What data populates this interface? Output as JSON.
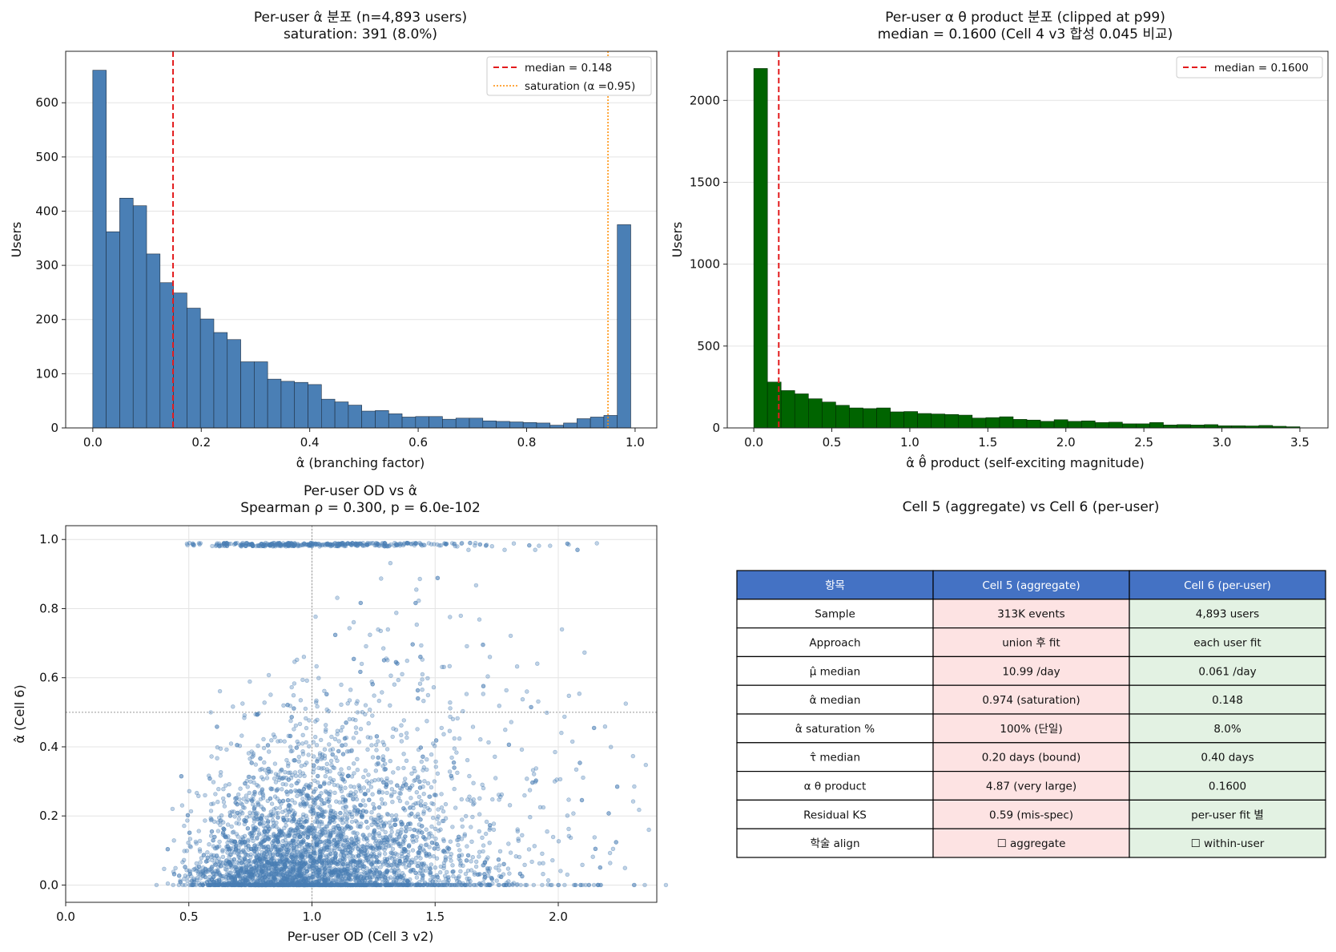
{
  "colors": {
    "hist1": "#4a7fb5",
    "hist2": "#006400",
    "median": "#e31a1c",
    "saturation": "#ff8c00",
    "scatter": "#4a7fb5",
    "table_header": "#4472c4",
    "table_agg": "#fde3e3",
    "table_per": "#e3f2e3"
  },
  "chart_data": [
    {
      "type": "bar",
      "title": "Per-user α̂ 분포 (n=4,893 users)",
      "subtitle": "saturation: 391 (8.0%)",
      "xlabel": "α̂ (branching factor)",
      "ylabel": "Users",
      "xlim": [
        -0.05,
        1.04
      ],
      "ylim": [
        0,
        695
      ],
      "xticks": [
        "0.0",
        "0.2",
        "0.4",
        "0.6",
        "0.8",
        "1.0"
      ],
      "xtick_values": [
        0,
        0.2,
        0.4,
        0.6,
        0.8,
        1.0
      ],
      "yticks": [
        "0",
        "100",
        "200",
        "300",
        "400",
        "500",
        "600"
      ],
      "ytick_values": [
        0,
        100,
        200,
        300,
        400,
        500,
        600
      ],
      "bin_start": 0.0,
      "bin_width": 0.0248,
      "values": [
        660,
        362,
        424,
        410,
        321,
        268,
        249,
        221,
        201,
        176,
        163,
        122,
        122,
        90,
        86,
        84,
        80,
        53,
        48,
        42,
        31,
        32,
        26,
        20,
        21,
        21,
        16,
        18,
        18,
        13,
        12,
        11,
        10,
        9,
        5,
        9,
        17,
        20,
        23,
        375
      ],
      "median": 0.148,
      "saturation": 0.95,
      "grid": "y",
      "legend": {
        "position": "top-right",
        "entries": [
          "median = 0.148",
          "saturation (α =0.95)"
        ]
      }
    },
    {
      "type": "bar",
      "title": "Per-user α θ product 분포 (clipped at p99)",
      "subtitle": "median = 0.1600 (Cell 4 v3 합성 0.045 비교)",
      "xlabel": "α̂ θ̂ product (self-exciting magnitude)",
      "ylabel": "Users",
      "xlim": [
        -0.17,
        3.68
      ],
      "ylim": [
        0,
        2300
      ],
      "xticks": [
        "0.0",
        "0.5",
        "1.0",
        "1.5",
        "2.0",
        "2.5",
        "3.0",
        "3.5"
      ],
      "xtick_values": [
        0,
        0.5,
        1.0,
        1.5,
        2.0,
        2.5,
        3.0,
        3.5
      ],
      "yticks": [
        "0",
        "500",
        "1000",
        "1500",
        "2000"
      ],
      "ytick_values": [
        0,
        500,
        1000,
        1500,
        2000
      ],
      "bin_start": 0.0,
      "bin_width": 0.0875,
      "values": [
        2195,
        280,
        228,
        208,
        178,
        158,
        138,
        122,
        118,
        122,
        98,
        100,
        88,
        85,
        82,
        78,
        60,
        63,
        68,
        52,
        48,
        40,
        50,
        40,
        43,
        33,
        35,
        25,
        25,
        33,
        18,
        20,
        18,
        20,
        13,
        13,
        12,
        15,
        10,
        7
      ],
      "median": 0.16,
      "grid": "y",
      "legend": {
        "position": "top-right",
        "entries": [
          "median = 0.1600"
        ]
      }
    },
    {
      "type": "scatter",
      "title": "Per-user OD vs α̂",
      "subtitle": "Spearman ρ = 0.300, p = 6.0e-102",
      "xlabel": "Per-user OD (Cell 3 v2)",
      "ylabel": "α̂ (Cell 6)",
      "xlim": [
        0.0,
        2.4
      ],
      "ylim": [
        -0.05,
        1.04
      ],
      "xticks": [
        "0.0",
        "0.5",
        "1.0",
        "1.5",
        "2.0"
      ],
      "xtick_values": [
        0,
        0.5,
        1.0,
        1.5,
        2.0
      ],
      "yticks": [
        "0.0",
        "0.2",
        "0.4",
        "0.6",
        "0.8",
        "1.0"
      ],
      "ytick_values": [
        0,
        0.2,
        0.4,
        0.6,
        0.8,
        1.0
      ],
      "reference_lines": {
        "x": 1.0,
        "y": 0.5
      },
      "n_points": 4893,
      "spearman_rho": 0.3,
      "grid": "both"
    }
  ],
  "table": {
    "title": "Cell 5 (aggregate) vs Cell 6 (per-user)",
    "headers": [
      "항목",
      "Cell 5 (aggregate)",
      "Cell 6 (per-user)"
    ],
    "rows": [
      [
        "Sample",
        "313K events",
        "4,893 users"
      ],
      [
        "Approach",
        "union 후 fit",
        "each user fit"
      ],
      [
        "μ̂ median",
        "10.99 /day",
        "0.061 /day"
      ],
      [
        "α̂ median",
        "0.974 (saturation)",
        "0.148"
      ],
      [
        "α̂ saturation %",
        "100% (단일)",
        "8.0%"
      ],
      [
        "τ̂ median",
        "0.20 days (bound)",
        "0.40 days"
      ],
      [
        "α θ product",
        "4.87 (very large)",
        "0.1600"
      ],
      [
        "Residual KS",
        "0.59 (mis-spec)",
        "per-user fit 별"
      ],
      [
        "학술 align",
        "☐ aggregate",
        "☐ within-user"
      ]
    ]
  }
}
